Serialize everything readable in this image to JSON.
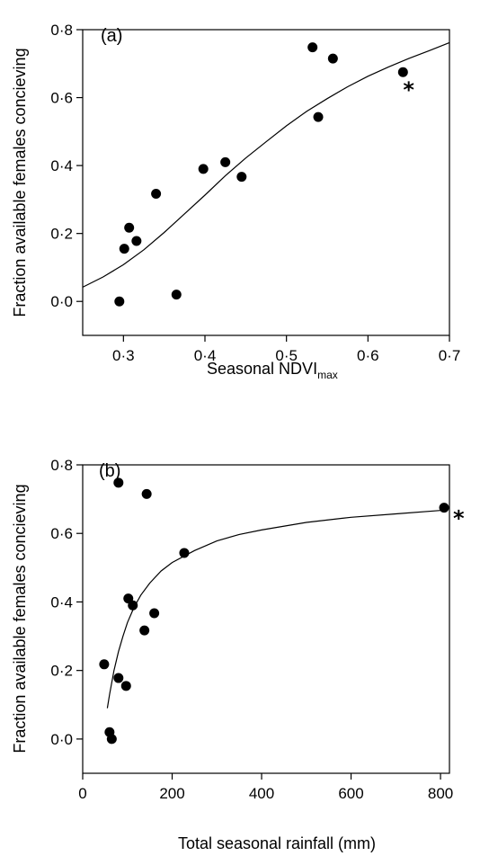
{
  "chart_data": [
    {
      "type": "scatter",
      "panel_label": "(a)",
      "xlabel": "Seasonal NDVI",
      "xlabel_subscript": "max",
      "ylabel": "Fraction available females concieving",
      "xlim": [
        0.25,
        0.7
      ],
      "ylim": [
        -0.1,
        0.8
      ],
      "xticks": [
        0.3,
        0.4,
        0.5,
        0.6,
        0.7
      ],
      "xtick_labels": [
        "0·3",
        "0·4",
        "0·5",
        "0·6",
        "0·7"
      ],
      "yticks": [
        0.0,
        0.2,
        0.4,
        0.6,
        0.8
      ],
      "ytick_labels": [
        "0·0",
        "0·2",
        "0·4",
        "0·6",
        "0·8"
      ],
      "points": [
        {
          "x": 0.295,
          "y": 0.0
        },
        {
          "x": 0.301,
          "y": 0.155
        },
        {
          "x": 0.307,
          "y": 0.217
        },
        {
          "x": 0.316,
          "y": 0.178
        },
        {
          "x": 0.34,
          "y": 0.317
        },
        {
          "x": 0.365,
          "y": 0.02
        },
        {
          "x": 0.398,
          "y": 0.39
        },
        {
          "x": 0.425,
          "y": 0.41
        },
        {
          "x": 0.445,
          "y": 0.367
        },
        {
          "x": 0.532,
          "y": 0.748
        },
        {
          "x": 0.539,
          "y": 0.543
        },
        {
          "x": 0.557,
          "y": 0.715
        },
        {
          "x": 0.643,
          "y": 0.675
        }
      ],
      "fit": {
        "x": [
          0.25,
          0.275,
          0.3,
          0.325,
          0.35,
          0.375,
          0.4,
          0.425,
          0.45,
          0.475,
          0.5,
          0.525,
          0.55,
          0.575,
          0.6,
          0.625,
          0.65,
          0.675,
          0.7
        ],
        "y": [
          0.042,
          0.072,
          0.108,
          0.152,
          0.203,
          0.258,
          0.313,
          0.37,
          0.422,
          0.47,
          0.517,
          0.56,
          0.597,
          0.632,
          0.663,
          0.69,
          0.715,
          0.738,
          0.762
        ]
      },
      "annotation": "*",
      "annotation_point_index": 12
    },
    {
      "type": "scatter",
      "panel_label": "(b)",
      "xlabel": "Total seasonal rainfall (mm)",
      "ylabel": "Fraction available females concieving",
      "xlim": [
        0,
        820
      ],
      "ylim": [
        -0.1,
        0.8
      ],
      "xticks": [
        0,
        200,
        400,
        600,
        800
      ],
      "xtick_labels": [
        "0",
        "200",
        "400",
        "600",
        "800"
      ],
      "yticks": [
        0.0,
        0.2,
        0.4,
        0.6,
        0.8
      ],
      "ytick_labels": [
        "0·0",
        "0·2",
        "0·4",
        "0·6",
        "0·8"
      ],
      "points": [
        {
          "x": 48,
          "y": 0.218
        },
        {
          "x": 60,
          "y": 0.02
        },
        {
          "x": 65,
          "y": 0.0
        },
        {
          "x": 80,
          "y": 0.748
        },
        {
          "x": 80,
          "y": 0.178
        },
        {
          "x": 97,
          "y": 0.155
        },
        {
          "x": 102,
          "y": 0.41
        },
        {
          "x": 112,
          "y": 0.39
        },
        {
          "x": 138,
          "y": 0.317
        },
        {
          "x": 143,
          "y": 0.715
        },
        {
          "x": 160,
          "y": 0.367
        },
        {
          "x": 227,
          "y": 0.543
        },
        {
          "x": 808,
          "y": 0.675
        }
      ],
      "fit": {
        "x": [
          55,
          60,
          70,
          80,
          90,
          100,
          115,
          130,
          150,
          175,
          200,
          250,
          300,
          350,
          400,
          500,
          600,
          700,
          800
        ],
        "y": [
          0.09,
          0.13,
          0.2,
          0.255,
          0.3,
          0.34,
          0.385,
          0.42,
          0.455,
          0.49,
          0.515,
          0.55,
          0.578,
          0.597,
          0.61,
          0.632,
          0.647,
          0.657,
          0.667
        ]
      },
      "annotation": "*",
      "annotation_point_index": 12
    }
  ]
}
